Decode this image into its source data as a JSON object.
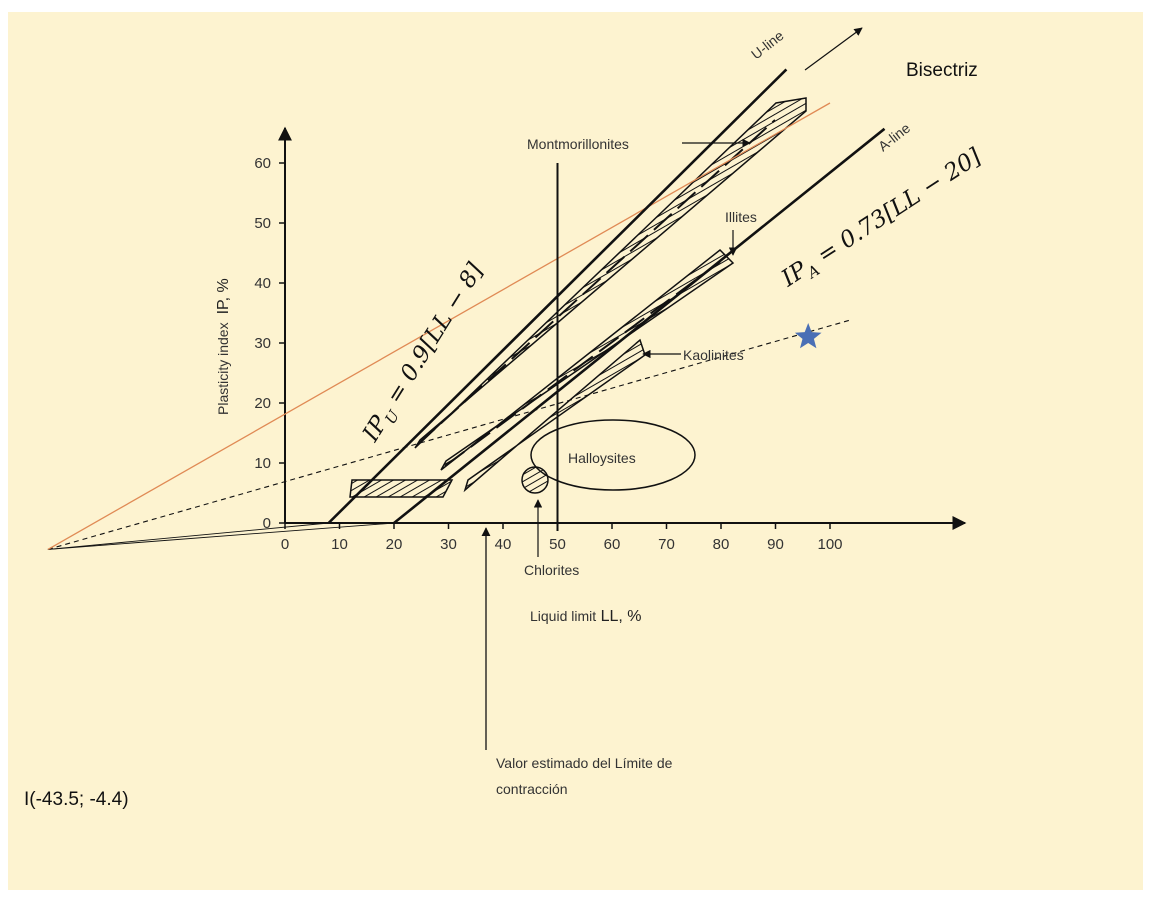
{
  "chart_data": {
    "type": "line",
    "title": "",
    "xlabel": "Liquid limit LL, %",
    "ylabel": "Plasticity index IP, %",
    "xlim": [
      0,
      100
    ],
    "ylim": [
      0,
      60
    ],
    "x_ticks": [
      "0",
      "10",
      "20",
      "30",
      "40",
      "50",
      "60",
      "70",
      "80",
      "90",
      "100"
    ],
    "y_ticks": [
      "0",
      "10",
      "20",
      "30",
      "40",
      "50",
      "60"
    ],
    "series": [
      {
        "name": "U-line",
        "equation": "IP_U = 0.9[LL − 8]",
        "x": [
          8,
          92
        ],
        "y": [
          0,
          75.6
        ]
      },
      {
        "name": "A-line",
        "equation": "IP_A = 0.73[LL − 20]",
        "x": [
          20,
          110
        ],
        "y": [
          0,
          65.7
        ]
      },
      {
        "name": "Bisectriz",
        "x": [
          -43.5,
          100
        ],
        "y": [
          -4.4,
          70
        ]
      }
    ],
    "reference_line": {
      "x": 50
    },
    "regions": [
      "Montmorillonites",
      "Illites",
      "Kaolinites",
      "Halloysites",
      "Chlorites"
    ],
    "intersection_point": {
      "label": "I(-43.5; -4.4)",
      "x": -43.5,
      "y": -4.4
    },
    "estimated_point": {
      "x": 96,
      "y": 31
    },
    "annotations": {
      "u_line": "U-line",
      "a_line": "A-line",
      "bisectriz": "Bisectriz",
      "u_equation_prefix": "IP",
      "u_equation_sub": "U",
      "u_equation_rest": " = 0.9[LL − 8]",
      "a_equation_prefix": "IP",
      "a_equation_sub": "A",
      "a_equation_rest": " = 0.73[LL − 20]",
      "montmorillonites": "Montmorillonites",
      "illites": "Illites",
      "kaolinites": "Kaolinites",
      "halloysites": "Halloysites",
      "chlorites": "Chlorites",
      "shrinkage_limit_line1": "Valor estimado del Límite de",
      "shrinkage_limit_line2": "contracción",
      "intersection": "I(-43.5; -4.4)",
      "xlabel_main": "Liquid limit",
      "xlabel_unit": " LL, %",
      "ylabel_main": "Plasticity index",
      "ylabel_unit": "IP, %"
    }
  },
  "colors": {
    "paper": "#fdf3d0",
    "ink": "#111111",
    "bisectriz": "#e08a55",
    "star": "#4a6fb5"
  },
  "icons": {
    "estimated_point": "star-icon"
  }
}
